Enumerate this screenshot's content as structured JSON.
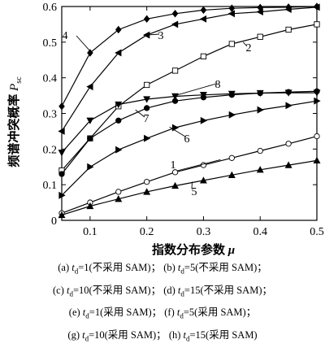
{
  "chart_data": {
    "type": "line",
    "xlabel": "指数分布参数 μ",
    "ylabel": "频谱冲突概率 Psc",
    "ylabel_main": "频谱冲突概率 ",
    "ylabel_symbol": "P",
    "ylabel_subscript": "sc",
    "xlabel_main": "指数分布参数 ",
    "xlabel_symbol": "μ",
    "xlim": [
      0.05,
      0.5
    ],
    "ylim": [
      0,
      0.6
    ],
    "xticks": [
      0.1,
      0.2,
      0.3,
      0.4,
      0.5
    ],
    "yticks": [
      0,
      0.1,
      0.2,
      0.3,
      0.4,
      0.5,
      0.6
    ],
    "xtick_labels": [
      "0.1",
      "0.2",
      "0.3",
      "0.4",
      "0.5"
    ],
    "ytick_labels": [
      "0",
      "0.1",
      "0.2",
      "0.3",
      "0.4",
      "0.5",
      "0.6"
    ],
    "series": [
      {
        "name": "1",
        "marker": "circle",
        "x": [
          0.05,
          0.1,
          0.15,
          0.2,
          0.25,
          0.3,
          0.35,
          0.4,
          0.45,
          0.5
        ],
        "y": [
          0.02,
          0.05,
          0.08,
          0.108,
          0.135,
          0.155,
          0.175,
          0.195,
          0.215,
          0.236
        ]
      },
      {
        "name": "2",
        "marker": "square",
        "x": [
          0.05,
          0.1,
          0.15,
          0.2,
          0.25,
          0.3,
          0.35,
          0.4,
          0.45,
          0.5
        ],
        "y": [
          0.14,
          0.23,
          0.32,
          0.38,
          0.42,
          0.46,
          0.495,
          0.515,
          0.535,
          0.55
        ]
      },
      {
        "name": "3",
        "marker": "triangle-left",
        "x": [
          0.05,
          0.1,
          0.15,
          0.2,
          0.25,
          0.3,
          0.35,
          0.4,
          0.45,
          0.5
        ],
        "y": [
          0.25,
          0.375,
          0.47,
          0.52,
          0.55,
          0.565,
          0.58,
          0.585,
          0.592,
          0.598
        ]
      },
      {
        "name": "4",
        "marker": "diamond",
        "x": [
          0.05,
          0.1,
          0.15,
          0.2,
          0.25,
          0.3,
          0.35,
          0.4,
          0.45,
          0.5
        ],
        "y": [
          0.32,
          0.47,
          0.535,
          0.565,
          0.58,
          0.59,
          0.595,
          0.597,
          0.598,
          0.6
        ]
      },
      {
        "name": "5",
        "marker": "triangle-up",
        "x": [
          0.05,
          0.1,
          0.15,
          0.2,
          0.25,
          0.3,
          0.35,
          0.4,
          0.45,
          0.5
        ],
        "y": [
          0.015,
          0.04,
          0.06,
          0.08,
          0.097,
          0.112,
          0.127,
          0.142,
          0.155,
          0.168
        ]
      },
      {
        "name": "6",
        "marker": "triangle-right",
        "x": [
          0.05,
          0.1,
          0.15,
          0.2,
          0.25,
          0.3,
          0.35,
          0.4,
          0.45,
          0.5
        ],
        "y": [
          0.07,
          0.15,
          0.198,
          0.23,
          0.26,
          0.28,
          0.296,
          0.31,
          0.322,
          0.335
        ]
      },
      {
        "name": "7",
        "marker": "circle-filled",
        "x": [
          0.05,
          0.1,
          0.15,
          0.2,
          0.25,
          0.3,
          0.35,
          0.4,
          0.45,
          0.5
        ],
        "y": [
          0.13,
          0.23,
          0.28,
          0.315,
          0.335,
          0.345,
          0.352,
          0.357,
          0.36,
          0.362
        ]
      },
      {
        "name": "8",
        "marker": "triangle-down",
        "x": [
          0.05,
          0.1,
          0.15,
          0.2,
          0.25,
          0.3,
          0.35,
          0.4,
          0.45,
          0.5
        ],
        "y": [
          0.19,
          0.28,
          0.325,
          0.34,
          0.348,
          0.352,
          0.355,
          0.357,
          0.358,
          0.358
        ]
      }
    ],
    "legend_lines": [
      [
        {
          "label": "(a) ",
          "sym": "t",
          "sub": "d",
          "rest": "=1(不采用 SAM)；"
        },
        {
          "label": "(b) ",
          "sym": "t",
          "sub": "d",
          "rest": "=5(不采用 SAM)；"
        }
      ],
      [
        {
          "label": "(c) ",
          "sym": "t",
          "sub": "d",
          "rest": "=10(不采用 SAM)；"
        },
        {
          "label": "(d) ",
          "sym": "t",
          "sub": "d",
          "rest": "=15(不采用 SAM)；"
        }
      ],
      [
        {
          "label": "(e) ",
          "sym": "t",
          "sub": "d",
          "rest": "=1(采用 SAM)；"
        },
        {
          "label": "(f) ",
          "sym": "t",
          "sub": "d",
          "rest": "=5(采用 SAM)；"
        }
      ],
      [
        {
          "label": "(g) ",
          "sym": "t",
          "sub": "d",
          "rest": "=10(采用 SAM)；"
        },
        {
          "label": "(h) ",
          "sym": "t",
          "sub": "d",
          "rest": "=15(采用 SAM)"
        }
      ]
    ]
  }
}
